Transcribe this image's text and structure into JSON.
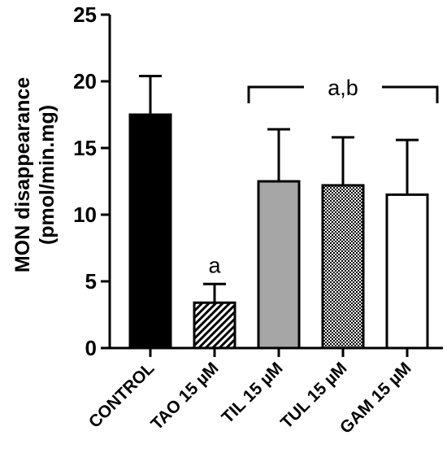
{
  "chart_data": {
    "type": "bar",
    "categories": [
      "CONTROL",
      "TAO 15 µM",
      "TIL 15 µM",
      "TUL 15 µM",
      "GAM 15 µM"
    ],
    "values": [
      17.5,
      3.4,
      12.5,
      12.2,
      11.5
    ],
    "errors": [
      2.9,
      1.4,
      3.9,
      3.6,
      4.1
    ],
    "patterns": [
      "solid-black",
      "diagonal-hatch",
      "solid-gray",
      "checkered",
      "white"
    ],
    "ylabel_line1": "MON disappearance",
    "ylabel_line2": "(pmol/min.mg)",
    "ylim": [
      0,
      25
    ],
    "yticks": [
      "0",
      "5",
      "10",
      "15",
      "20",
      "25"
    ],
    "annotations": {
      "single": "a",
      "group": "a,b"
    },
    "grid": false,
    "legend": "none"
  }
}
